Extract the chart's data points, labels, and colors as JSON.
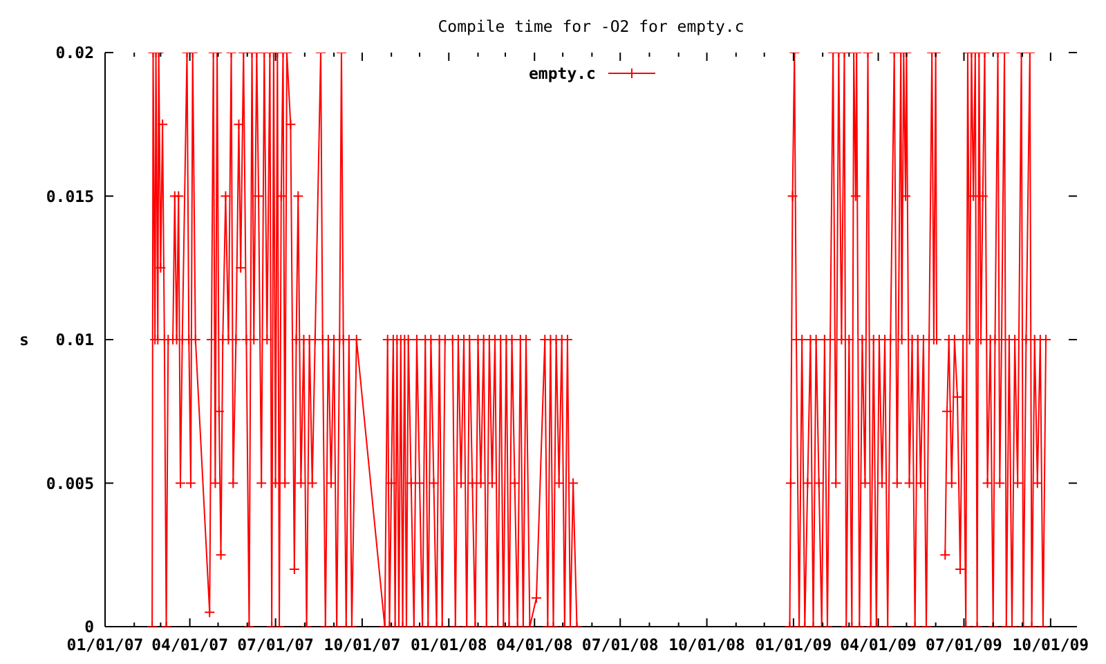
{
  "chart_data": {
    "type": "line",
    "title": "Compile time for -O2 for empty.c",
    "ylabel": "s",
    "xlim": [
      "2007-01-01",
      "2009-10-29"
    ],
    "xticks": [
      {
        "value": "2007-01-01",
        "label": "01/01/07"
      },
      {
        "value": "2007-02-01",
        "label": null
      },
      {
        "value": "2007-03-01",
        "label": null
      },
      {
        "value": "2007-04-01",
        "label": "04/01/07"
      },
      {
        "value": "2007-05-01",
        "label": null
      },
      {
        "value": "2007-06-01",
        "label": null
      },
      {
        "value": "2007-07-01",
        "label": "07/01/07"
      },
      {
        "value": "2007-08-01",
        "label": null
      },
      {
        "value": "2007-09-01",
        "label": null
      },
      {
        "value": "2007-10-01",
        "label": "10/01/07"
      },
      {
        "value": "2007-11-01",
        "label": null
      },
      {
        "value": "2007-12-01",
        "label": null
      },
      {
        "value": "2008-01-01",
        "label": "01/01/08"
      },
      {
        "value": "2008-02-01",
        "label": null
      },
      {
        "value": "2008-03-01",
        "label": null
      },
      {
        "value": "2008-04-01",
        "label": "04/01/08"
      },
      {
        "value": "2008-05-01",
        "label": null
      },
      {
        "value": "2008-06-01",
        "label": null
      },
      {
        "value": "2008-07-01",
        "label": "07/01/08"
      },
      {
        "value": "2008-08-01",
        "label": null
      },
      {
        "value": "2008-09-01",
        "label": null
      },
      {
        "value": "2008-10-01",
        "label": "10/01/08"
      },
      {
        "value": "2008-11-01",
        "label": null
      },
      {
        "value": "2008-12-01",
        "label": null
      },
      {
        "value": "2009-01-01",
        "label": "01/01/09"
      },
      {
        "value": "2009-02-01",
        "label": null
      },
      {
        "value": "2009-03-01",
        "label": null
      },
      {
        "value": "2009-04-01",
        "label": "04/01/09"
      },
      {
        "value": "2009-05-01",
        "label": null
      },
      {
        "value": "2009-06-01",
        "label": null
      },
      {
        "value": "2009-07-01",
        "label": "07/01/09"
      },
      {
        "value": "2009-08-01",
        "label": null
      },
      {
        "value": "2009-09-01",
        "label": null
      },
      {
        "value": "2009-10-01",
        "label": "10/01/09"
      }
    ],
    "ylim": [
      0,
      0.02
    ],
    "yticks": [
      0,
      0.005,
      0.01,
      0.015,
      0.02
    ],
    "legend": "top",
    "marker": "cross",
    "line_style": "solid",
    "x": [
      "2007-02-20",
      "2007-02-21",
      "2007-02-23",
      "2007-02-24",
      "2007-02-26",
      "2007-02-27",
      "2007-03-01",
      "2007-03-03",
      "2007-03-05",
      "2007-03-07",
      "2007-03-09",
      "2007-03-14",
      "2007-03-16",
      "2007-03-18",
      "2007-03-20",
      "2007-03-22",
      "2007-03-24",
      "2007-03-29",
      "2007-03-31",
      "2007-04-02",
      "2007-04-04",
      "2007-04-07",
      "2007-04-22",
      "2007-04-24",
      "2007-04-26",
      "2007-04-28",
      "2007-04-30",
      "2007-05-02",
      "2007-05-04",
      "2007-05-06",
      "2007-05-09",
      "2007-05-12",
      "2007-05-15",
      "2007-05-17",
      "2007-05-20",
      "2007-05-23",
      "2007-05-25",
      "2007-05-28",
      "2007-05-31",
      "2007-06-03",
      "2007-06-06",
      "2007-06-08",
      "2007-06-11",
      "2007-06-13",
      "2007-06-16",
      "2007-06-19",
      "2007-06-22",
      "2007-06-25",
      "2007-06-27",
      "2007-06-29",
      "2007-07-01",
      "2007-07-03",
      "2007-07-05",
      "2007-07-07",
      "2007-07-09",
      "2007-07-11",
      "2007-07-13",
      "2007-07-17",
      "2007-07-21",
      "2007-07-23",
      "2007-07-25",
      "2007-07-28",
      "2007-07-31",
      "2007-08-03",
      "2007-08-06",
      "2007-08-09",
      "2007-08-12",
      "2007-08-18",
      "2007-08-20",
      "2007-08-23",
      "2007-08-26",
      "2007-08-29",
      "2007-09-01",
      "2007-09-04",
      "2007-09-07",
      "2007-09-09",
      "2007-09-11",
      "2007-09-14",
      "2007-09-17",
      "2007-09-20",
      "2007-09-25",
      "2007-10-25",
      "2007-10-28",
      "2007-10-30",
      "2007-11-01",
      "2007-11-03",
      "2007-11-05",
      "2007-11-07",
      "2007-11-09",
      "2007-11-11",
      "2007-11-13",
      "2007-11-15",
      "2007-11-17",
      "2007-11-19",
      "2007-11-22",
      "2007-11-25",
      "2007-11-28",
      "2007-12-01",
      "2007-12-04",
      "2007-12-07",
      "2007-12-10",
      "2007-12-13",
      "2007-12-16",
      "2007-12-19",
      "2007-12-22",
      "2007-12-25",
      "2007-12-28",
      "2008-01-02",
      "2008-01-05",
      "2008-01-08",
      "2008-01-11",
      "2008-01-14",
      "2008-01-17",
      "2008-01-20",
      "2008-01-23",
      "2008-01-26",
      "2008-01-29",
      "2008-02-01",
      "2008-02-04",
      "2008-02-07",
      "2008-02-10",
      "2008-02-13",
      "2008-02-16",
      "2008-02-19",
      "2008-02-22",
      "2008-02-25",
      "2008-02-28",
      "2008-03-02",
      "2008-03-05",
      "2008-03-08",
      "2008-03-11",
      "2008-03-14",
      "2008-03-17",
      "2008-03-20",
      "2008-03-23",
      "2008-03-27",
      "2008-04-03",
      "2008-04-12",
      "2008-04-15",
      "2008-04-18",
      "2008-04-21",
      "2008-04-24",
      "2008-04-27",
      "2008-04-30",
      "2008-05-03",
      "2008-05-06",
      "2008-05-09",
      "2008-05-12",
      "2008-05-16",
      "2008-09-01",
      "2008-12-28",
      "2008-12-29",
      "2008-12-31",
      "2009-01-02",
      "2009-01-04",
      "2009-01-07",
      "2009-01-10",
      "2009-01-13",
      "2009-01-16",
      "2009-01-19",
      "2009-01-22",
      "2009-01-25",
      "2009-01-28",
      "2009-01-31",
      "2009-02-03",
      "2009-02-06",
      "2009-02-09",
      "2009-02-12",
      "2009-02-15",
      "2009-02-18",
      "2009-02-21",
      "2009-02-24",
      "2009-02-26",
      "2009-03-01",
      "2009-03-04",
      "2009-03-06",
      "2009-03-08",
      "2009-03-09",
      "2009-03-12",
      "2009-03-15",
      "2009-03-18",
      "2009-03-21",
      "2009-03-24",
      "2009-03-27",
      "2009-03-30",
      "2009-04-02",
      "2009-04-05",
      "2009-04-08",
      "2009-04-11",
      "2009-04-14",
      "2009-04-18",
      "2009-04-21",
      "2009-04-25",
      "2009-04-26",
      "2009-04-28",
      "2009-04-30",
      "2009-05-01",
      "2009-05-04",
      "2009-05-07",
      "2009-05-10",
      "2009-05-13",
      "2009-05-16",
      "2009-05-19",
      "2009-05-22",
      "2009-05-25",
      "2009-05-28",
      "2009-05-30",
      "2009-06-01",
      "2009-06-02",
      "2009-06-07",
      "2009-06-11",
      "2009-06-13",
      "2009-06-15",
      "2009-06-18",
      "2009-06-21",
      "2009-06-24",
      "2009-06-27",
      "2009-06-30",
      "2009-07-03",
      "2009-07-05",
      "2009-07-07",
      "2009-07-09",
      "2009-07-11",
      "2009-07-13",
      "2009-07-15",
      "2009-07-17",
      "2009-07-19",
      "2009-07-21",
      "2009-07-23",
      "2009-07-26",
      "2009-07-29",
      "2009-08-01",
      "2009-08-03",
      "2009-08-06",
      "2009-08-08",
      "2009-08-10",
      "2009-08-13",
      "2009-08-15",
      "2009-08-18",
      "2009-08-21",
      "2009-08-24",
      "2009-08-27",
      "2009-08-31",
      "2009-09-02",
      "2009-09-05",
      "2009-09-09",
      "2009-09-11",
      "2009-09-14",
      "2009-09-17",
      "2009-09-20",
      "2009-09-23",
      "2009-09-26"
    ],
    "series": [
      {
        "name": "empty.c",
        "color": "#ff0000",
        "values": [
          0,
          0.02,
          0.01,
          0.02,
          0.01,
          0.02,
          0.0125,
          0.0175,
          0.01,
          0,
          0.01,
          0.01,
          0.015,
          0.01,
          0.015,
          0.005,
          0.01,
          0.02,
          0.01,
          0.005,
          0.02,
          0.01,
          0.0005,
          0.01,
          0.02,
          0.005,
          0.02,
          0.0075,
          0.0025,
          0.01,
          0.015,
          0.01,
          0.02,
          0.005,
          0.01,
          0.0175,
          0.0125,
          0.02,
          0.01,
          0,
          0.02,
          0.01,
          0.02,
          0.015,
          0.005,
          0.02,
          0.01,
          0.02,
          0,
          0.02,
          0.005,
          0.02,
          0,
          0.015,
          0.02,
          0.005,
          0.02,
          0.0175,
          0.002,
          0.01,
          0.015,
          0.005,
          0.01,
          0,
          0.01,
          0.005,
          0.01,
          0.02,
          0.01,
          0,
          0.01,
          0.005,
          0.01,
          0,
          0.01,
          0.02,
          0.01,
          0,
          0.01,
          0,
          0.01,
          0,
          0.01,
          0,
          0.005,
          0.01,
          0,
          0.01,
          0,
          0.01,
          0,
          0.01,
          0,
          0.01,
          0.005,
          0,
          0.01,
          0.005,
          0,
          0.01,
          0,
          0.01,
          0.005,
          0,
          0.01,
          0,
          0.01,
          null,
          0.01,
          0,
          0.01,
          0.005,
          0.01,
          0,
          0.01,
          0.005,
          0,
          0.01,
          0.005,
          0.01,
          0,
          0.01,
          0.005,
          0.01,
          0,
          0.01,
          0,
          0.01,
          0,
          0.01,
          0.005,
          0,
          0.01,
          0,
          0.01,
          0,
          0.001,
          0.01,
          0,
          0.01,
          0,
          0.01,
          0.005,
          0.01,
          0,
          0.01,
          0,
          0.005,
          0,
          null,
          0,
          0.005,
          0.015,
          0.02,
          0.01,
          0,
          0.01,
          0,
          0.005,
          0.01,
          0,
          0.01,
          0.005,
          0,
          0.01,
          0,
          0.01,
          0.02,
          0.005,
          0.02,
          0.01,
          0.02,
          0,
          0.01,
          0,
          0.02,
          0.015,
          0.02,
          0,
          0.01,
          0.005,
          0.02,
          0,
          0.01,
          0,
          0.01,
          0.005,
          0.01,
          0,
          0.01,
          0.02,
          0.005,
          0.02,
          0.01,
          0.02,
          0.015,
          0.02,
          0.005,
          0.01,
          0,
          0.01,
          0.005,
          0.01,
          0,
          0.01,
          0.02,
          0.01,
          0.02,
          0.01,
          null,
          0.0025,
          0.0075,
          0.01,
          0.005,
          0.01,
          0.008,
          0.002,
          0.01,
          0,
          0.02,
          0.01,
          0.02,
          0.015,
          0.02,
          0,
          0.02,
          0.01,
          0.015,
          0.02,
          0.005,
          0.01,
          0,
          0.01,
          0.02,
          0.005,
          0.01,
          0.02,
          0,
          0.01,
          0,
          0.01,
          0.005,
          0.02,
          0,
          0.01,
          0.02,
          0,
          0.01,
          0.005,
          0.01,
          0,
          0.01
        ]
      }
    ]
  }
}
